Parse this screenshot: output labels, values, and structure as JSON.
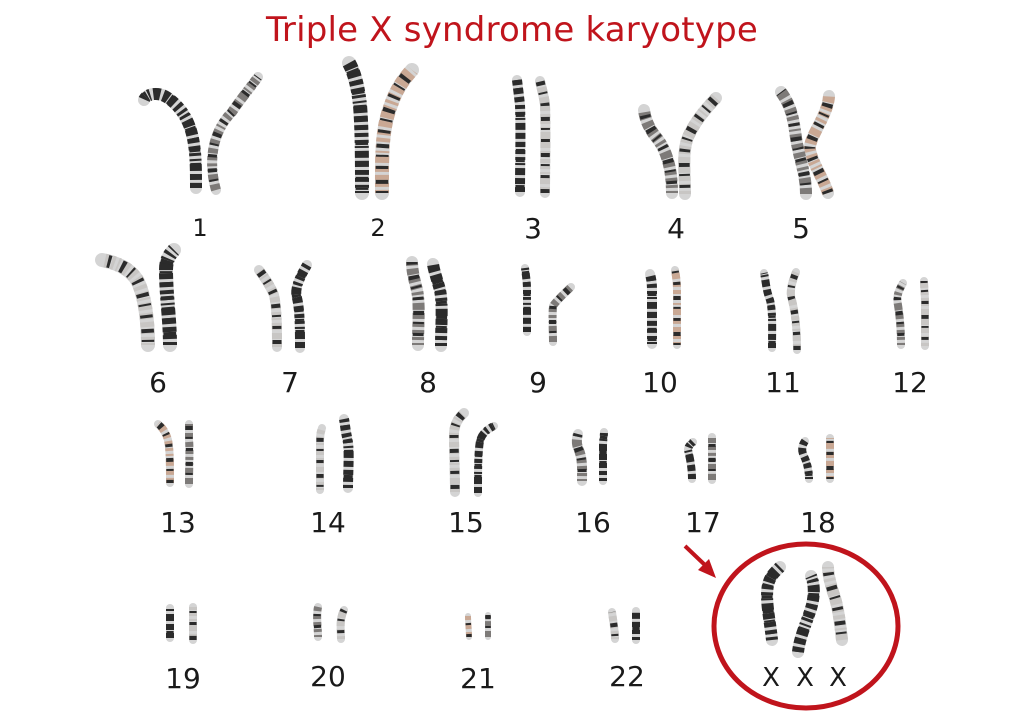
{
  "title": "Triple X syndrome karyotype",
  "colors": {
    "title": "#c0141c",
    "highlight": "#c0141c",
    "label": "#1a1a1a",
    "band_dark": "#2b2b2b",
    "band_mid": "#7d7a78",
    "band_light": "#c8c6c4",
    "band_tan": "#c9a894",
    "chromatid_base": "#d4d4d4"
  },
  "chromosomes": [
    {
      "label": "1"
    },
    {
      "label": "2"
    },
    {
      "label": "3"
    },
    {
      "label": "4"
    },
    {
      "label": "5"
    },
    {
      "label": "6"
    },
    {
      "label": "7"
    },
    {
      "label": "8"
    },
    {
      "label": "9"
    },
    {
      "label": "10"
    },
    {
      "label": "11"
    },
    {
      "label": "12"
    },
    {
      "label": "13"
    },
    {
      "label": "14"
    },
    {
      "label": "15"
    },
    {
      "label": "16"
    },
    {
      "label": "17"
    },
    {
      "label": "18"
    },
    {
      "label": "19"
    },
    {
      "label": "20"
    },
    {
      "label": "21"
    },
    {
      "label": "22"
    }
  ],
  "sex_chromosomes": {
    "labels": [
      "X",
      "X",
      "X"
    ]
  }
}
